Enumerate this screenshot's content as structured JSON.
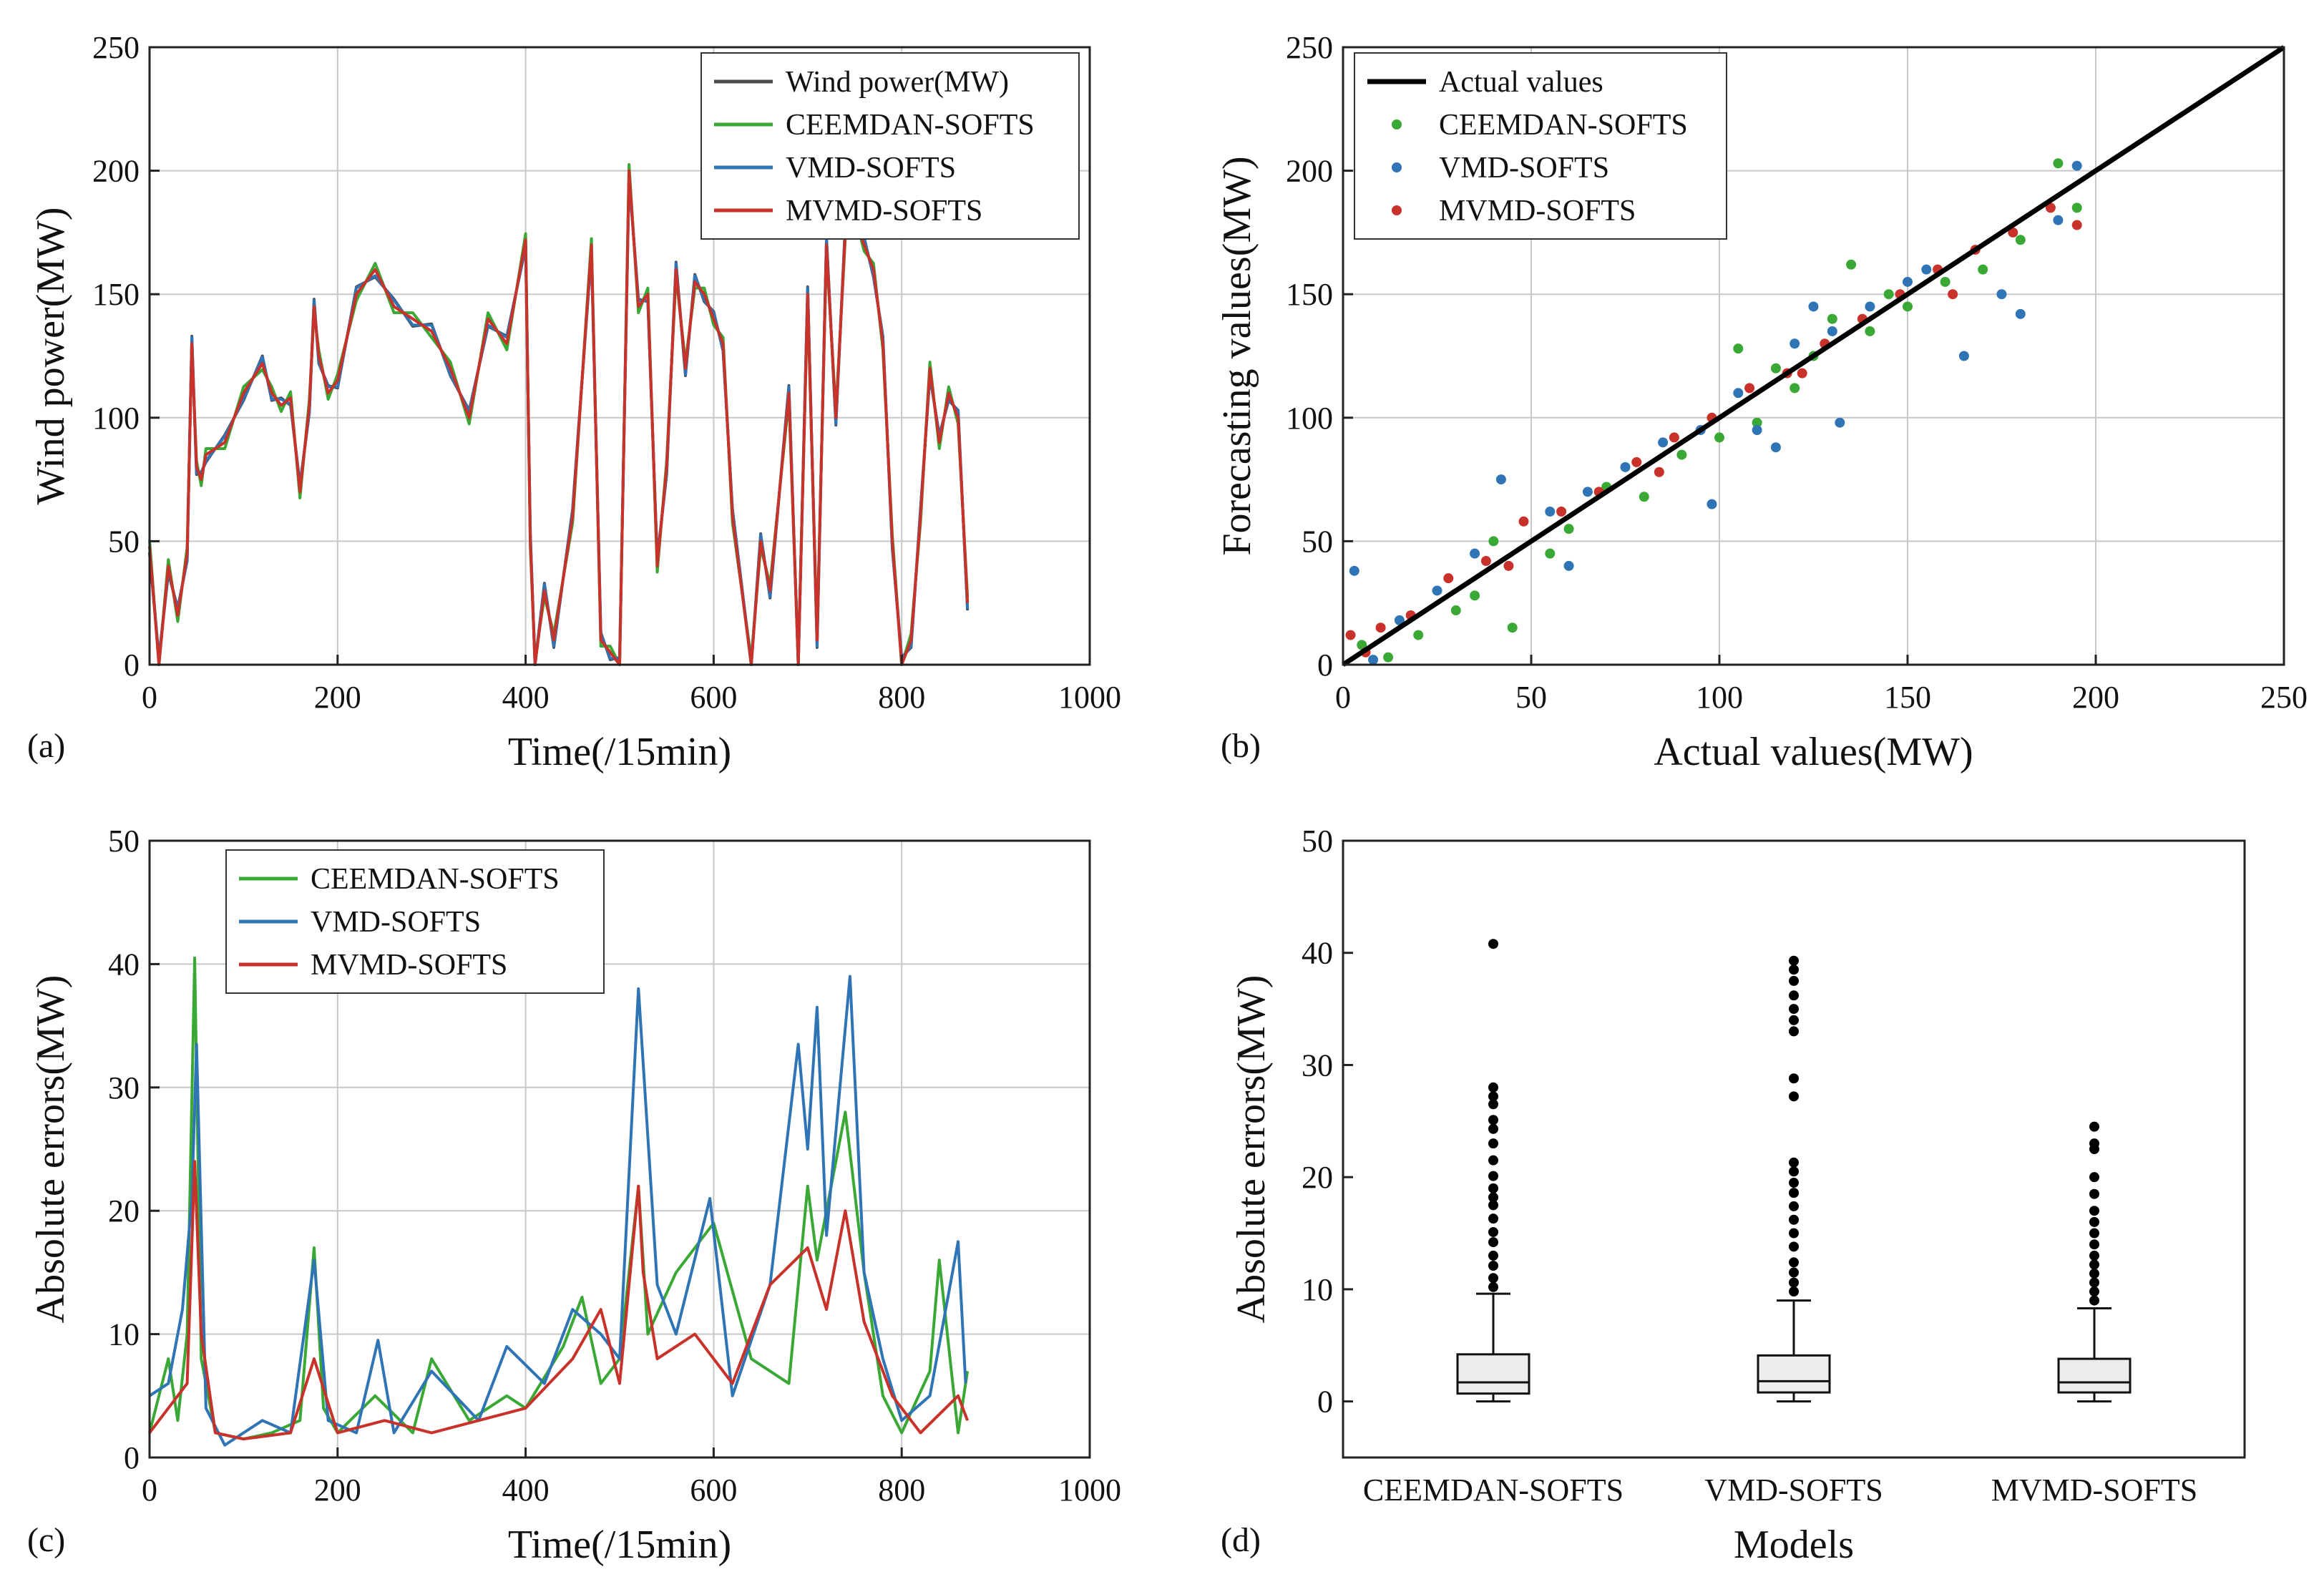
{
  "figure": {
    "panel_labels": [
      "(a)",
      "(b)",
      "(c)",
      "(d)"
    ]
  },
  "colors": {
    "wind": "#4a4a4a",
    "ceemdan": "#3aa835",
    "vmd": "#2f74b5",
    "mvmd": "#c8322a",
    "actual_line": "#000000",
    "box_fill": "#ececec"
  },
  "chart_data": [
    {
      "id": "a",
      "type": "line",
      "xlabel": "Time(/15min)",
      "ylabel": "Wind power(MW)",
      "xlim": [
        0,
        1000
      ],
      "ylim": [
        0,
        250
      ],
      "xticks": [
        0,
        200,
        400,
        600,
        800,
        1000
      ],
      "yticks": [
        0,
        50,
        100,
        150,
        200,
        250
      ],
      "grid": true,
      "legend": "top-right",
      "series": [
        {
          "name": "Wind power(MW)",
          "color_key": "wind"
        },
        {
          "name": "CEEMDAN-SOFTS",
          "color_key": "ceemdan"
        },
        {
          "name": "VMD-SOFTS",
          "color_key": "vmd"
        },
        {
          "name": "MVMD-SOFTS",
          "color_key": "mvmd"
        }
      ],
      "x": [
        0,
        10,
        20,
        30,
        40,
        45,
        50,
        55,
        60,
        80,
        100,
        120,
        130,
        140,
        150,
        160,
        170,
        175,
        180,
        190,
        200,
        220,
        240,
        260,
        280,
        300,
        320,
        340,
        360,
        380,
        400,
        405,
        410,
        420,
        430,
        450,
        470,
        480,
        490,
        500,
        510,
        520,
        530,
        540,
        550,
        560,
        570,
        580,
        590,
        600,
        610,
        620,
        640,
        650,
        660,
        680,
        690,
        700,
        710,
        720,
        730,
        740,
        750,
        760,
        770,
        780,
        790,
        800,
        810,
        820,
        830,
        840,
        850,
        860,
        870
      ],
      "y": [
        48,
        0,
        40,
        20,
        45,
        130,
        80,
        75,
        85,
        90,
        110,
        122,
        110,
        105,
        108,
        70,
        105,
        145,
        125,
        110,
        115,
        150,
        160,
        145,
        140,
        135,
        120,
        100,
        140,
        130,
        172,
        50,
        0,
        30,
        10,
        60,
        170,
        10,
        5,
        0,
        200,
        145,
        150,
        40,
        80,
        160,
        120,
        155,
        150,
        140,
        130,
        60,
        0,
        50,
        30,
        110,
        0,
        150,
        10,
        170,
        100,
        175,
        180,
        170,
        160,
        130,
        50,
        0,
        10,
        60,
        120,
        90,
        110,
        100,
        25
      ]
    },
    {
      "id": "b",
      "type": "scatter",
      "xlabel": "Actual values(MW)",
      "ylabel": "Forecasting values(MW)",
      "xlim": [
        0,
        250
      ],
      "ylim": [
        0,
        250
      ],
      "xticks": [
        0,
        50,
        100,
        150,
        200,
        250
      ],
      "yticks": [
        0,
        50,
        100,
        150,
        200,
        250
      ],
      "grid": true,
      "legend": "top-left",
      "reference_line": {
        "name": "Actual values",
        "x": [
          0,
          250
        ],
        "y": [
          0,
          250
        ]
      },
      "series": [
        {
          "name": "CEEMDAN-SOFTS",
          "color_key": "ceemdan",
          "points": [
            [
              5,
              8
            ],
            [
              12,
              3
            ],
            [
              20,
              12
            ],
            [
              30,
              22
            ],
            [
              40,
              50
            ],
            [
              45,
              15
            ],
            [
              60,
              55
            ],
            [
              70,
              72
            ],
            [
              80,
              68
            ],
            [
              90,
              85
            ],
            [
              100,
              92
            ],
            [
              110,
              98
            ],
            [
              115,
              120
            ],
            [
              120,
              112
            ],
            [
              130,
              140
            ],
            [
              135,
              162
            ],
            [
              140,
              135
            ],
            [
              150,
              145
            ],
            [
              160,
              155
            ],
            [
              170,
              160
            ],
            [
              180,
              172
            ],
            [
              190,
              203
            ],
            [
              195,
              185
            ],
            [
              35,
              28
            ],
            [
              55,
              45
            ],
            [
              105,
              128
            ],
            [
              125,
              125
            ],
            [
              145,
              150
            ]
          ]
        },
        {
          "name": "VMD-SOFTS",
          "color_key": "vmd",
          "points": [
            [
              3,
              38
            ],
            [
              8,
              2
            ],
            [
              15,
              18
            ],
            [
              25,
              30
            ],
            [
              35,
              45
            ],
            [
              42,
              75
            ],
            [
              55,
              62
            ],
            [
              65,
              70
            ],
            [
              75,
              80
            ],
            [
              85,
              90
            ],
            [
              95,
              95
            ],
            [
              98,
              65
            ],
            [
              105,
              110
            ],
            [
              110,
              95
            ],
            [
              115,
              88
            ],
            [
              120,
              130
            ],
            [
              130,
              135
            ],
            [
              132,
              98
            ],
            [
              140,
              145
            ],
            [
              150,
              155
            ],
            [
              155,
              160
            ],
            [
              165,
              125
            ],
            [
              175,
              150
            ],
            [
              180,
              142
            ],
            [
              190,
              180
            ],
            [
              195,
              202
            ],
            [
              60,
              40
            ],
            [
              125,
              145
            ]
          ]
        },
        {
          "name": "MVMD-SOFTS",
          "color_key": "mvmd",
          "points": [
            [
              2,
              12
            ],
            [
              10,
              15
            ],
            [
              18,
              20
            ],
            [
              28,
              35
            ],
            [
              38,
              42
            ],
            [
              48,
              58
            ],
            [
              58,
              62
            ],
            [
              68,
              70
            ],
            [
              78,
              82
            ],
            [
              88,
              92
            ],
            [
              98,
              100
            ],
            [
              108,
              112
            ],
            [
              118,
              118
            ],
            [
              128,
              130
            ],
            [
              138,
              140
            ],
            [
              148,
              150
            ],
            [
              158,
              160
            ],
            [
              168,
              168
            ],
            [
              178,
              175
            ],
            [
              188,
              185
            ],
            [
              195,
              178
            ],
            [
              6,
              5
            ],
            [
              44,
              40
            ],
            [
              84,
              78
            ],
            [
              122,
              118
            ],
            [
              162,
              150
            ]
          ]
        }
      ]
    },
    {
      "id": "c",
      "type": "line",
      "xlabel": "Time(/15min)",
      "ylabel": "Absolute errors(MW)",
      "xlim": [
        0,
        1000
      ],
      "ylim": [
        0,
        50
      ],
      "xticks": [
        0,
        200,
        400,
        600,
        800,
        1000
      ],
      "yticks": [
        0,
        10,
        20,
        30,
        40,
        50
      ],
      "grid": true,
      "legend": "top-left",
      "series": [
        {
          "name": "CEEMDAN-SOFTS",
          "color_key": "ceemdan",
          "x": [
            0,
            20,
            30,
            40,
            48,
            55,
            70,
            100,
            130,
            160,
            175,
            185,
            200,
            240,
            280,
            300,
            340,
            380,
            400,
            440,
            460,
            480,
            500,
            520,
            530,
            560,
            600,
            640,
            680,
            700,
            710,
            720,
            740,
            760,
            780,
            800,
            830,
            840,
            860,
            870
          ],
          "y": [
            2,
            8,
            3,
            10,
            40.5,
            8,
            2,
            1.5,
            2,
            3,
            17,
            4,
            2,
            5,
            2,
            8,
            3,
            5,
            4,
            9,
            13,
            6,
            8,
            22,
            10,
            15,
            19,
            8,
            6,
            22,
            16,
            20,
            28,
            15,
            5,
            2,
            7,
            16,
            2,
            7
          ]
        },
        {
          "name": "VMD-SOFTS",
          "color_key": "vmd",
          "x": [
            0,
            20,
            35,
            45,
            50,
            60,
            80,
            120,
            150,
            175,
            190,
            220,
            243,
            260,
            300,
            350,
            380,
            420,
            450,
            480,
            500,
            520,
            540,
            560,
            596,
            620,
            660,
            690,
            700,
            710,
            720,
            745,
            760,
            780,
            800,
            830,
            860,
            868
          ],
          "y": [
            5,
            6,
            12,
            21,
            33.5,
            4,
            1,
            3,
            2,
            16,
            3,
            2,
            9.5,
            2,
            7,
            3,
            9,
            6,
            12,
            10,
            8,
            38,
            14,
            10,
            21,
            5,
            14,
            33.5,
            25,
            36.5,
            18,
            39,
            15,
            8,
            3,
            5,
            17.5,
            6
          ]
        },
        {
          "name": "MVMD-SOFTS",
          "color_key": "mvmd",
          "x": [
            0,
            20,
            40,
            48,
            55,
            70,
            100,
            150,
            175,
            200,
            250,
            300,
            350,
            400,
            450,
            480,
            500,
            520,
            525,
            540,
            580,
            620,
            660,
            700,
            720,
            740,
            760,
            790,
            820,
            860,
            870
          ],
          "y": [
            2,
            4,
            6,
            24,
            10,
            2,
            1.5,
            2,
            8,
            2,
            3,
            2,
            3,
            4,
            8,
            12,
            6,
            22,
            15,
            8,
            10,
            6,
            14,
            17,
            12,
            20,
            11,
            5,
            2,
            5,
            3
          ]
        }
      ]
    },
    {
      "id": "d",
      "type": "box",
      "xlabel": "Models",
      "ylabel": "Absolute errors(MW)",
      "ylim": [
        -5,
        50
      ],
      "yticks": [
        0,
        10,
        20,
        30,
        40,
        50
      ],
      "categories": [
        "CEEMDAN-SOFTS",
        "VMD-SOFTS",
        "MVMD-SOFTS"
      ],
      "boxes": [
        {
          "min": 0,
          "q1": 0.7,
          "median": 1.7,
          "q3": 4.2,
          "max": 9.6,
          "outliers": [
            10.2,
            11.0,
            12.1,
            13.0,
            14.2,
            15.1,
            16.3,
            17.5,
            18.2,
            19.0,
            20.1,
            21.5,
            23.0,
            24.3,
            25.1,
            26.5,
            27.2,
            28.0,
            40.8
          ]
        },
        {
          "min": 0,
          "q1": 0.8,
          "median": 1.8,
          "q3": 4.1,
          "max": 9.0,
          "outliers": [
            9.8,
            10.6,
            11.5,
            12.4,
            13.8,
            15.0,
            16.2,
            17.4,
            18.6,
            19.5,
            20.5,
            21.3,
            27.2,
            28.8,
            33.0,
            34.0,
            35.0,
            36.2,
            37.5,
            38.5,
            39.3
          ]
        },
        {
          "min": 0,
          "q1": 0.8,
          "median": 1.7,
          "q3": 3.8,
          "max": 8.3,
          "outliers": [
            9.0,
            9.8,
            10.6,
            11.4,
            12.2,
            13.0,
            14.0,
            15.0,
            16.0,
            17.0,
            18.5,
            20.0,
            22.5,
            23.0,
            24.5
          ]
        }
      ]
    }
  ]
}
